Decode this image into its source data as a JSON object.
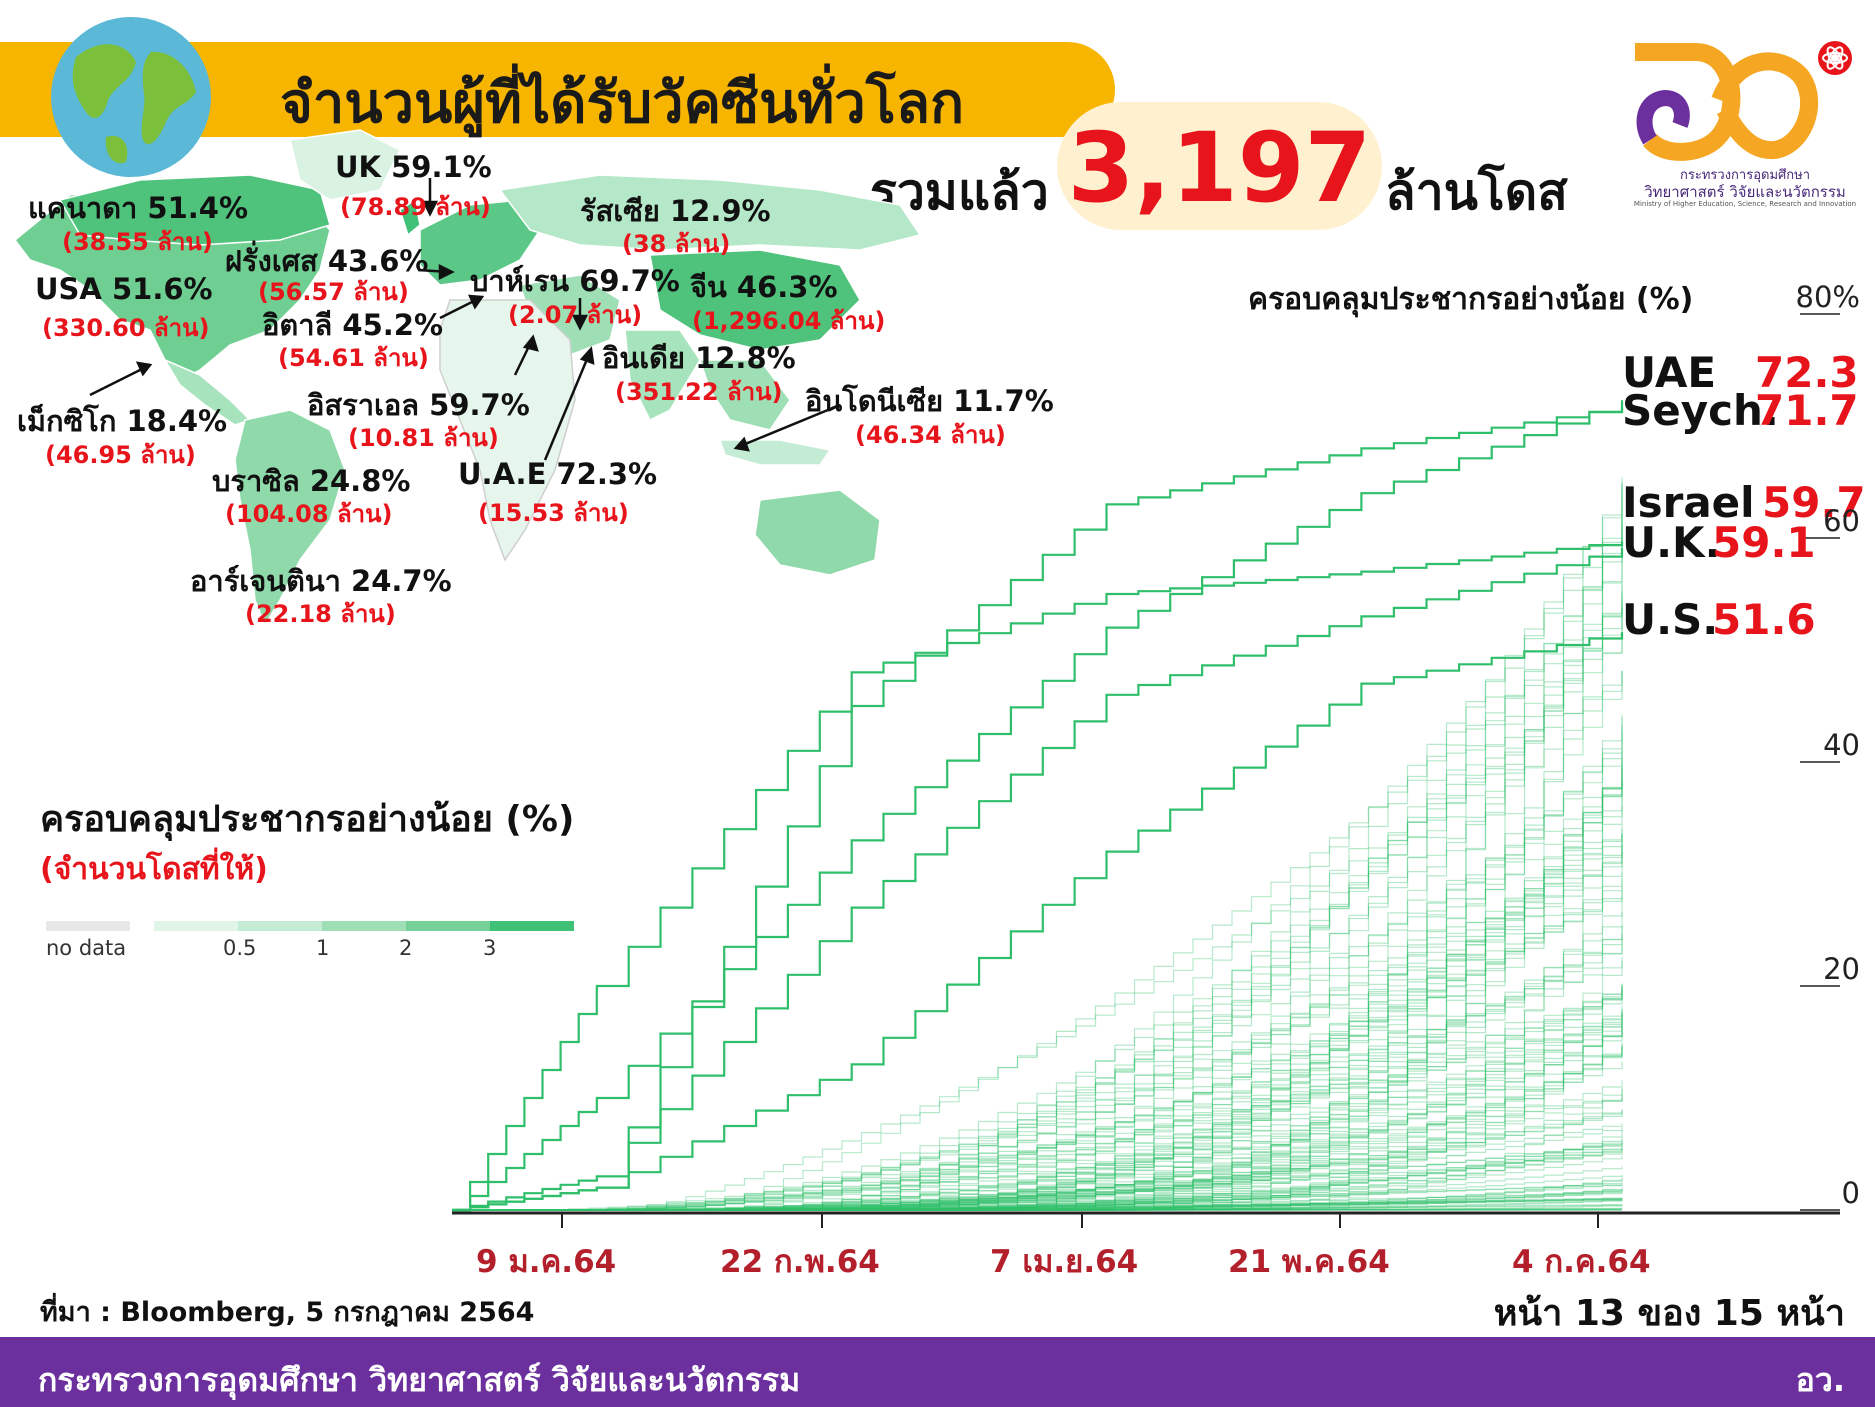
{
  "header": {
    "title": "จำนวนผู้ที่ได้รับวัคซีนทั่วโลก",
    "total_prefix": "รวมแล้ว",
    "total_value": "3,197",
    "total_suffix": "ล้านโดส"
  },
  "ministry": {
    "line1": "กระทรวงการอุดมศึกษา",
    "line2": "วิทยาศาสตร์ วิจัยและนวัตกรรม",
    "line3": "Ministry of Higher Education, Science, Research and Innovation",
    "colors": {
      "orange": "#f5a623",
      "purple": "#6b2f9e",
      "red": "#e8141b"
    }
  },
  "map_labels": [
    {
      "name": "แคนาดา 51.4%",
      "doses": "(38.55 ล้าน)"
    },
    {
      "name": "UK 59.1%",
      "doses": "(78.89 ล้าน)"
    },
    {
      "name": "รัสเซีย 12.9%",
      "doses": "(38 ล้าน)"
    },
    {
      "name": "ฝรั่งเศส 43.6%",
      "doses": "(56.57 ล้าน)"
    },
    {
      "name": "USA 51.6%",
      "doses": "(330.60 ล้าน)"
    },
    {
      "name": "บาห์เรน 69.7%",
      "doses": "(2.07 ล้าน)"
    },
    {
      "name": "จีน 46.3%",
      "doses": "(1,296.04 ล้าน)"
    },
    {
      "name": "อิตาลี 45.2%",
      "doses": "(54.61 ล้าน)"
    },
    {
      "name": "อินเดีย 12.8%",
      "doses": "(351.22 ล้าน)"
    },
    {
      "name": "อิสราเอล 59.7%",
      "doses": "(10.81 ล้าน)"
    },
    {
      "name": "อินโดนีเซีย 11.7%",
      "doses": "(46.34 ล้าน)"
    },
    {
      "name": "เม็กซิโก 18.4%",
      "doses": "(46.95 ล้าน)"
    },
    {
      "name": "บราซิล 24.8%",
      "doses": "(104.08 ล้าน)"
    },
    {
      "name": "U.A.E 72.3%",
      "doses": "(15.53 ล้าน)"
    },
    {
      "name": "อาร์เจนตินา 24.7%",
      "doses": "(22.18 ล้าน)"
    }
  ],
  "legend": {
    "title": "ครอบคลุมประชากรอย่างน้อย (%)",
    "subtitle": "(จำนวนโดสที่ให้)",
    "no_data": "no data",
    "ticks": [
      "0.5",
      "1",
      "2",
      "3"
    ],
    "colors": [
      "#e8e8e8",
      "#e0f5e8",
      "#c4ebd3",
      "#9edfb6",
      "#74d298",
      "#3fc277"
    ]
  },
  "chart_data": {
    "type": "line",
    "title": "ครอบคลุมประชากรอย่างน้อย (%)",
    "x_tick_labels": [
      "9 ม.ค.64",
      "22 ก.พ.64",
      "7 เม.ย.64",
      "21 พ.ค.64",
      "4 ก.ค.64"
    ],
    "y_tick_labels": [
      "80%",
      "60",
      "40",
      "20",
      "0"
    ],
    "ylim": [
      0,
      80
    ],
    "xlim": [
      "2020-12-15",
      "2021-07-05"
    ],
    "line_color": "#2fbf6b",
    "series": [
      {
        "name": "UAE",
        "value_label": "72.3",
        "x": [
          "2020-12-15",
          "2021-01-09",
          "2021-02-22",
          "2021-04-07",
          "2021-05-21",
          "2021-07-05"
        ],
        "y": [
          0,
          10,
          33,
          52,
          64,
          72.3
        ]
      },
      {
        "name": "Seych.",
        "value_label": "71.7",
        "x": [
          "2020-12-15",
          "2021-01-09",
          "2021-02-22",
          "2021-04-07",
          "2021-05-21",
          "2021-07-05"
        ],
        "y": [
          0,
          2,
          45,
          63,
          68,
          71.7
        ]
      },
      {
        "name": "Israel",
        "value_label": "59.7",
        "x": [
          "2020-12-15",
          "2021-01-09",
          "2021-02-22",
          "2021-04-07",
          "2021-05-21",
          "2021-07-05"
        ],
        "y": [
          0,
          20,
          48,
          55,
          57,
          59.7
        ]
      },
      {
        "name": "U.K.",
        "value_label": "59.1",
        "x": [
          "2020-12-15",
          "2021-01-09",
          "2021-02-22",
          "2021-04-07",
          "2021-05-21",
          "2021-07-05"
        ],
        "y": [
          0,
          3,
          27,
          46,
          53,
          59.1
        ]
      },
      {
        "name": "U.S.",
        "value_label": "51.6",
        "x": [
          "2020-12-15",
          "2021-01-09",
          "2021-02-22",
          "2021-04-07",
          "2021-05-21",
          "2021-07-05"
        ],
        "y": [
          0,
          2,
          13,
          32,
          47,
          51.6
        ]
      }
    ]
  },
  "footer": {
    "source": "ที่มา : Bloomberg, 5 กรกฎาคม 2564",
    "page": "หน้า 13 ของ 15 หน้า",
    "ministry": "กระทรวงการอุดมศึกษา วิทยาศาสตร์ วิจัยและนวัตกรรม",
    "right": "อว."
  }
}
